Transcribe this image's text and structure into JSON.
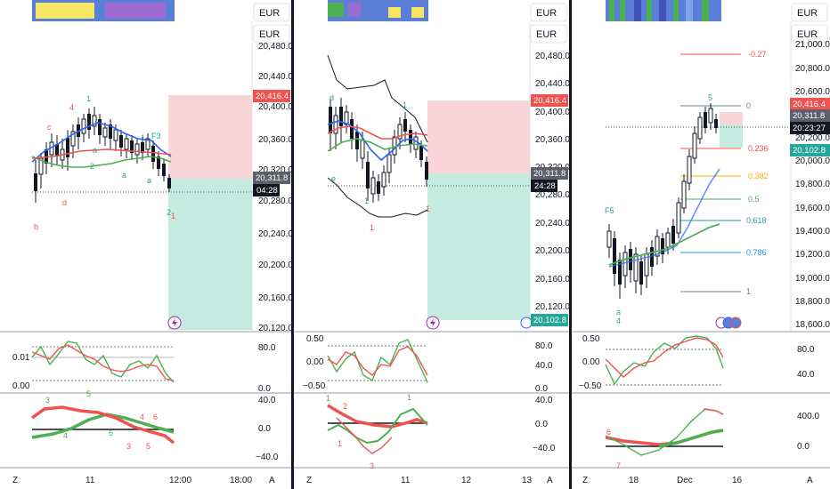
{
  "currency_label": "EUR",
  "scale_a": "A",
  "scale_z": "Z",
  "colors": {
    "up": "#26a69a",
    "down": "#ef5350",
    "ema": "#2962ff",
    "sma": "#ef5350",
    "green": "#4caf50",
    "risk": "#f7c6c9",
    "reward": "#b3e5d9"
  },
  "panels": [
    {
      "id": "left",
      "yticks": [
        "20,480.0",
        "20,440.0",
        "20,400.0",
        "20,360.0",
        "20,320.0",
        "20,280.0",
        "20,240.0",
        "20,200.0",
        "20,160.0",
        "20,120.0"
      ],
      "xticks": [
        "11",
        "12:00",
        "18:00"
      ],
      "tags": {
        "top": "20,416.4",
        "mid": "20,311.8",
        "timer": "04:28"
      },
      "osc1": {
        "ticks": [
          "80.0",
          "0.0"
        ],
        "left_ticks": [
          "0.01",
          "0.00"
        ]
      },
      "osc2": {
        "ticks": [
          "40.0",
          "0.0",
          "−40.0"
        ]
      },
      "wave_labels": [
        "1",
        "4",
        "c",
        "d",
        "b",
        "a",
        "2",
        "a",
        "a",
        "1",
        "F3",
        "2",
        "1"
      ],
      "osc_labels": [
        "3",
        "5",
        "4",
        "6",
        "4",
        "6",
        "3",
        "5"
      ]
    },
    {
      "id": "mid",
      "yticks": [
        "20,480.0",
        "20,440.0",
        "20,400.0",
        "20,360.0",
        "20,320.0",
        "20,280.0",
        "20,240.0",
        "20,200.0",
        "20,160.0",
        "20,120.0"
      ],
      "xticks": [
        "11",
        "12",
        "13"
      ],
      "tags": {
        "top": "20,416.4",
        "mid": "20,311.8",
        "timer": "24:28",
        "bottom": "20,102.8"
      },
      "osc1": {
        "ticks": [
          "80.0",
          "40.0",
          "0.0"
        ],
        "left_ticks": [
          "0.50",
          "0.00",
          "−0.50"
        ]
      },
      "osc2": {
        "ticks": [
          "40.0",
          "0.0",
          "−40.0"
        ]
      },
      "wave_labels": [
        "d",
        "e",
        "1",
        "1",
        "1",
        "1"
      ],
      "osc_labels": [
        "1",
        "2",
        "1",
        "1",
        "3"
      ]
    },
    {
      "id": "right",
      "yticks": [
        "21,000.0",
        "20,800.0",
        "20,600.0",
        "20,400.0",
        "20,200.0",
        "20,000.0",
        "19,800.0",
        "19,600.0",
        "19,400.0",
        "19,200.0",
        "19,000.0",
        "18,800.0",
        "18,600.0"
      ],
      "xticks": [
        "18",
        "Dec",
        "16"
      ],
      "tags": {
        "top": "20,416.4",
        "mid": "20,311.8",
        "timer": "20:23:27",
        "bottom": "20,102.8"
      },
      "fib": [
        "-0.27",
        "0",
        "0.236",
        "0.382",
        "0.5",
        "0.618",
        "0.786",
        "1"
      ],
      "osc1": {
        "ticks": [
          "80.0",
          "40.0"
        ],
        "left_ticks": [
          "0.50",
          "0.00",
          "−0.50"
        ]
      },
      "osc2": {
        "ticks": [
          "400.0",
          "0.0"
        ]
      },
      "wave_labels": [
        "F5",
        "5",
        "a",
        "4"
      ],
      "osc_labels": [
        "6",
        "7"
      ]
    }
  ]
}
